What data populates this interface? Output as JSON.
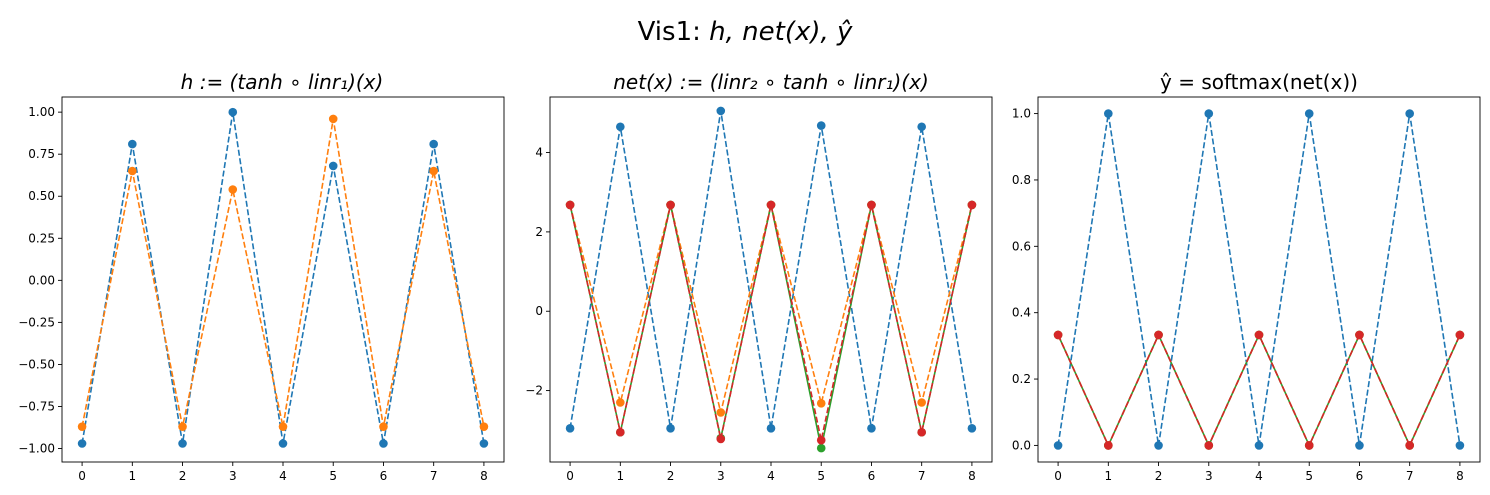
{
  "figure": {
    "suptitle_prefix": "Vis1: ",
    "suptitle_math": "h, net(x), ŷ"
  },
  "chart_data": [
    {
      "type": "line",
      "title": "h := (tanh ∘ linr₁)(x)",
      "x": [
        0,
        1,
        2,
        3,
        4,
        5,
        6,
        7,
        8
      ],
      "xticks": [
        "0",
        "1",
        "2",
        "3",
        "4",
        "5",
        "6",
        "7",
        "8"
      ],
      "ylim": [
        -1.08,
        1.09
      ],
      "yticks": [
        1.0,
        0.75,
        0.5,
        0.25,
        0.0,
        -0.25,
        -0.5,
        -0.75,
        -1.0
      ],
      "ytick_labels": [
        "1.00",
        "0.75",
        "0.50",
        "0.25",
        "0.00",
        "−0.25",
        "−0.50",
        "−0.75",
        "−1.00"
      ],
      "grid": false,
      "series": [
        {
          "color": "#1f77b4",
          "linestyle": "dashed",
          "marker": "circle",
          "values": [
            -0.97,
            0.81,
            -0.97,
            1.0,
            -0.97,
            0.68,
            -0.97,
            0.81,
            -0.97
          ]
        },
        {
          "color": "#ff7f0e",
          "linestyle": "dashed",
          "marker": "circle",
          "values": [
            -0.87,
            0.65,
            -0.87,
            0.54,
            -0.87,
            0.96,
            -0.87,
            0.65,
            -0.87
          ]
        }
      ]
    },
    {
      "type": "line",
      "title": "net(x) := (linr₂ ∘ tanh ∘ linr₁)(x)",
      "x": [
        0,
        1,
        2,
        3,
        4,
        5,
        6,
        7,
        8
      ],
      "xticks": [
        "0",
        "1",
        "2",
        "3",
        "4",
        "5",
        "6",
        "7",
        "8"
      ],
      "ylim": [
        -3.8,
        5.4
      ],
      "yticks": [
        4,
        2,
        0,
        -2
      ],
      "ytick_labels": [
        "4",
        "2",
        "0",
        "−2"
      ],
      "grid": false,
      "series": [
        {
          "color": "#1f77b4",
          "linestyle": "dashed",
          "marker": "circle",
          "values": [
            -2.95,
            4.65,
            -2.95,
            5.05,
            -2.95,
            4.68,
            -2.95,
            4.65,
            -2.95
          ]
        },
        {
          "color": "#ff7f0e",
          "linestyle": "dashed",
          "marker": "circle",
          "values": [
            2.68,
            -2.3,
            2.68,
            -2.55,
            2.68,
            -2.32,
            2.68,
            -2.3,
            2.68
          ]
        },
        {
          "color": "#2ca02c",
          "linestyle": "solid",
          "marker": "circle",
          "values": [
            2.68,
            -3.05,
            2.68,
            -3.2,
            2.68,
            -3.45,
            2.68,
            -3.05,
            2.68
          ]
        },
        {
          "color": "#d62728",
          "linestyle": "dashed",
          "marker": "circle",
          "values": [
            2.68,
            -3.05,
            2.68,
            -3.22,
            2.68,
            -3.25,
            2.68,
            -3.05,
            2.68
          ]
        }
      ]
    },
    {
      "type": "line",
      "title": "ŷ = softmax(net(x))",
      "x": [
        0,
        1,
        2,
        3,
        4,
        5,
        6,
        7,
        8
      ],
      "xticks": [
        "0",
        "1",
        "2",
        "3",
        "4",
        "5",
        "6",
        "7",
        "8"
      ],
      "ylim": [
        -0.05,
        1.05
      ],
      "yticks": [
        1.0,
        0.8,
        0.6,
        0.4,
        0.2,
        0.0
      ],
      "ytick_labels": [
        "1.0",
        "0.8",
        "0.6",
        "0.4",
        "0.2",
        "0.0"
      ],
      "grid": false,
      "series": [
        {
          "color": "#1f77b4",
          "linestyle": "dashed",
          "marker": "circle",
          "values": [
            0.0,
            1.0,
            0.0,
            1.0,
            0.0,
            1.0,
            0.0,
            1.0,
            0.0
          ]
        },
        {
          "color": "#ff7f0e",
          "linestyle": "dashed",
          "marker": "circle",
          "values": [
            0.333,
            0.0,
            0.333,
            0.0,
            0.333,
            0.0,
            0.333,
            0.0,
            0.333
          ]
        },
        {
          "color": "#2ca02c",
          "linestyle": "solid",
          "marker": "circle",
          "values": [
            0.333,
            0.0,
            0.333,
            0.0,
            0.333,
            0.0,
            0.333,
            0.0,
            0.333
          ]
        },
        {
          "color": "#d62728",
          "linestyle": "dashed",
          "marker": "circle",
          "values": [
            0.333,
            0.0,
            0.333,
            0.0,
            0.333,
            0.0,
            0.333,
            0.0,
            0.333
          ]
        }
      ]
    }
  ]
}
